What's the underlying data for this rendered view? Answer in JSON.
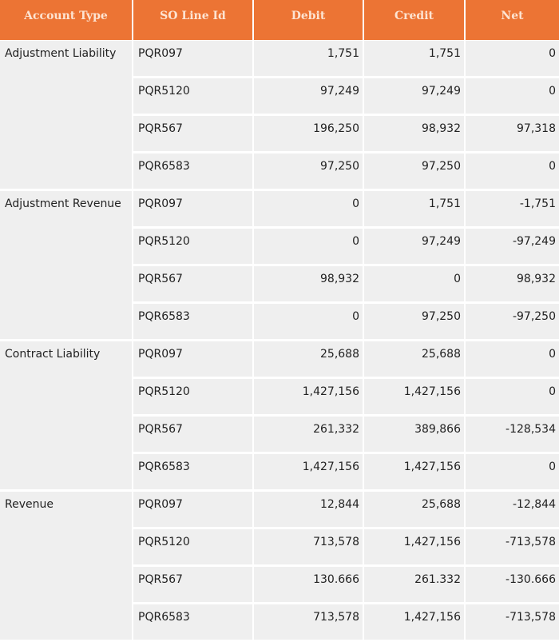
{
  "headers": {
    "account_type": "Account Type",
    "so_line_id": "SO Line Id",
    "debit": "Debit",
    "credit": "Credit",
    "net": "Net"
  },
  "groups": [
    {
      "account_type": "Adjustment Liability",
      "rows": [
        {
          "so_line_id": "PQR097",
          "debit": "1,751",
          "credit": "1,751",
          "net": "0"
        },
        {
          "so_line_id": "PQR5120",
          "debit": "97,249",
          "credit": "97,249",
          "net": "0"
        },
        {
          "so_line_id": "PQR567",
          "debit": "196,250",
          "credit": "98,932",
          "net": "97,318"
        },
        {
          "so_line_id": "PQR6583",
          "debit": "97,250",
          "credit": "97,250",
          "net": "0"
        }
      ]
    },
    {
      "account_type": "Adjustment Revenue",
      "rows": [
        {
          "so_line_id": "PQR097",
          "debit": "0",
          "credit": "1,751",
          "net": "-1,751"
        },
        {
          "so_line_id": "PQR5120",
          "debit": "0",
          "credit": "97,249",
          "net": "-97,249"
        },
        {
          "so_line_id": "PQR567",
          "debit": "98,932",
          "credit": "0",
          "net": "98,932"
        },
        {
          "so_line_id": "PQR6583",
          "debit": "0",
          "credit": "97,250",
          "net": "-97,250"
        }
      ]
    },
    {
      "account_type": "Contract Liability",
      "rows": [
        {
          "so_line_id": "PQR097",
          "debit": "25,688",
          "credit": "25,688",
          "net": "0"
        },
        {
          "so_line_id": "PQR5120",
          "debit": "1,427,156",
          "credit": "1,427,156",
          "net": "0"
        },
        {
          "so_line_id": "PQR567",
          "debit": "261,332",
          "credit": "389,866",
          "net": "-128,534"
        },
        {
          "so_line_id": "PQR6583",
          "debit": "1,427,156",
          "credit": "1,427,156",
          "net": "0"
        }
      ]
    },
    {
      "account_type": "Revenue",
      "rows": [
        {
          "so_line_id": "PQR097",
          "debit": "12,844",
          "credit": "25,688",
          "net": "-12,844"
        },
        {
          "so_line_id": "PQR5120",
          "debit": "713,578",
          "credit": "1,427,156",
          "net": "-713,578"
        },
        {
          "so_line_id": "PQR567",
          "debit": "130.666",
          "credit": "261.332",
          "net": "-130.666"
        },
        {
          "so_line_id": "PQR6583",
          "debit": "713,578",
          "credit": "1,427,156",
          "net": "-713,578"
        }
      ]
    }
  ],
  "colors": {
    "header_bg": "#ec7434",
    "header_text": "#fde4d2",
    "cell_bg": "#efefef"
  }
}
